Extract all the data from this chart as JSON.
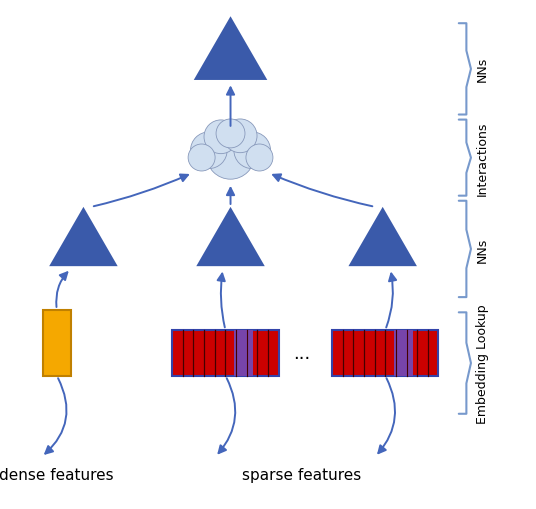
{
  "triangle_color": "#3a5aaa",
  "cloud_color_light": "#d0dff0",
  "cloud_color_dark": "#a0b8d0",
  "dense_rect_color": "#f5a800",
  "dense_rect_edge": "#c08000",
  "sparse_main_color": "#cc0000",
  "sparse_dark_stripe": "#880000",
  "sparse_highlight": "#7744aa",
  "sparse_edge": "#3344aa",
  "arrow_color": "#4466bb",
  "brace_color": "#7799cc",
  "background_color": "#ffffff",
  "labels": {
    "dense": "dense features",
    "sparse": "sparse features",
    "NNs_top": "NNs",
    "interactions": "Interactions",
    "NNs_mid": "NNs",
    "embedding": "Embedding Lookup"
  },
  "label_fontsize": 11,
  "brace_label_fontsize": 9
}
